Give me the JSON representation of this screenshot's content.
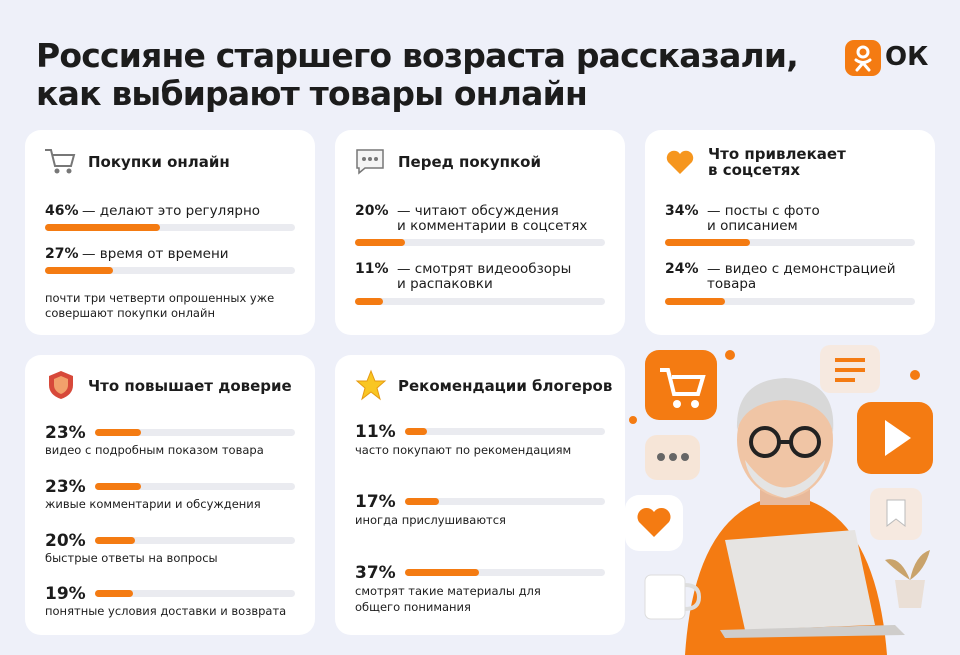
{
  "header": {
    "title": [
      "Россияне старшего возраста рассказали,",
      "как выбирают товары онлайн"
    ],
    "logo": "ОК"
  },
  "cards": [
    {
      "title": [
        "Покупки онлайн"
      ],
      "items": [
        {
          "value": 46,
          "label": "46%",
          "text": [
            "— делают это регулярно"
          ]
        },
        {
          "value": 27,
          "label": "27%",
          "text": [
            "— время от времени"
          ]
        }
      ],
      "note": [
        "почти три четверти опрошенных уже",
        "совершают покупки онлайн"
      ]
    },
    {
      "title": [
        "Перед покупкой"
      ],
      "items": [
        {
          "value": 20,
          "label": "20%",
          "text": [
            "— читают обсуждения",
            "и комментарии в соцсетях"
          ]
        },
        {
          "value": 11,
          "label": "11%",
          "text": [
            "— смотрят видеообзоры",
            "и распаковки"
          ]
        }
      ]
    },
    {
      "title": [
        "Что привлекает",
        "в соцсетях"
      ],
      "items": [
        {
          "value": 34,
          "label": "34%",
          "text": [
            "— посты с фото",
            "и описанием"
          ]
        },
        {
          "value": 24,
          "label": "24%",
          "text": [
            "— видео с демонстрацией",
            "товара"
          ]
        }
      ]
    },
    {
      "title": [
        "Что повышает доверие"
      ],
      "items": [
        {
          "value": 23,
          "label": "23%",
          "text": [
            "видео с подробным показом товара"
          ]
        },
        {
          "value": 23,
          "label": "23%",
          "text": [
            "живые комментарии и обсуждения"
          ]
        },
        {
          "value": 20,
          "label": "20%",
          "text": [
            "быстрые ответы на вопросы"
          ]
        },
        {
          "value": 19,
          "label": "19%",
          "text": [
            "понятные условия доставки и возврата"
          ]
        }
      ]
    },
    {
      "title": [
        "Рекомендации блогеров"
      ],
      "items": [
        {
          "value": 11,
          "label": "11%",
          "text": [
            "часто покупают по рекомендациям"
          ]
        },
        {
          "value": 17,
          "label": "17%",
          "text": [
            "иногда прислушиваются"
          ]
        },
        {
          "value": 37,
          "label": "37%",
          "text": [
            "смотрят такие материалы для",
            "общего понимания"
          ]
        }
      ]
    }
  ]
}
